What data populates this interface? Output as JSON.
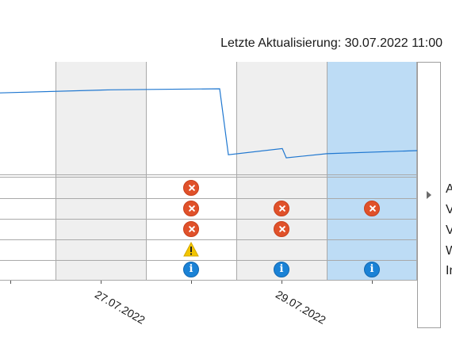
{
  "header": {
    "last_update": "Letzte Aktualisierung: 30.07.2022 11:00"
  },
  "timeline": {
    "x_labels": [
      "27.07.2022",
      "29.07.2022"
    ],
    "trend_line": {
      "color": "#1f77d0",
      "values": [
        76,
        79,
        80,
        16,
        22,
        13,
        17,
        20
      ],
      "unit_note": ""
    },
    "status_columns": [
      {
        "date": "27.07.2022",
        "events": [
          "error",
          "error",
          "error",
          "warning",
          "info"
        ]
      },
      {
        "date": "29.07.2022",
        "events": [
          "",
          "error",
          "error",
          "",
          "info"
        ]
      },
      {
        "date": "30.07.2022",
        "events": [
          "",
          "error",
          "",
          "",
          "info"
        ],
        "selected": true
      }
    ],
    "colors": {
      "error": "#e0512a",
      "warning": "#f2c500",
      "info": "#1a82d6",
      "selected_column": "#bddcf5",
      "alternate_column": "#efefef"
    }
  },
  "side_panel": {
    "expand_icon": "triangle-right-icon",
    "row_labels": [
      "A",
      "V",
      "V",
      "W",
      "In"
    ]
  }
}
